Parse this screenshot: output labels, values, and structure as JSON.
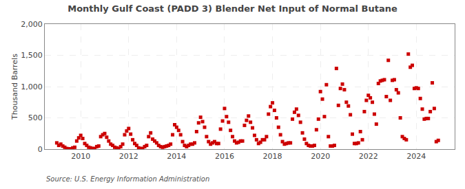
{
  "chart_data": {
    "type": "scatter",
    "title": "Monthly Gulf Coast (PADD 3) Blender Net Input of Normal Butane",
    "ylabel": "Thousand Barrels",
    "annotations": [
      "Source: U.S. Energy Information Administration"
    ],
    "color": "#cc0000",
    "marker": "square",
    "grid": true,
    "xlim": [
      2008.5,
      2025.6
    ],
    "xticks": [
      2010,
      2012,
      2014,
      2016,
      2018,
      2020,
      2022,
      2024
    ],
    "ylim": [
      0,
      2000
    ],
    "yticks": [
      0,
      500,
      {
        "value": 1000,
        "label": "1,000"
      },
      {
        "value": 1500,
        "label": "1,500"
      },
      {
        "value": 2000,
        "label": "2,000"
      }
    ],
    "x": [
      2009.0,
      2009.083,
      2009.167,
      2009.25,
      2009.333,
      2009.417,
      2009.5,
      2009.583,
      2009.667,
      2009.75,
      2009.833,
      2009.917,
      2010.0,
      2010.083,
      2010.167,
      2010.25,
      2010.333,
      2010.417,
      2010.5,
      2010.583,
      2010.667,
      2010.75,
      2010.833,
      2010.917,
      2011.0,
      2011.083,
      2011.167,
      2011.25,
      2011.333,
      2011.417,
      2011.5,
      2011.583,
      2011.667,
      2011.75,
      2011.833,
      2011.917,
      2012.0,
      2012.083,
      2012.167,
      2012.25,
      2012.333,
      2012.417,
      2012.5,
      2012.583,
      2012.667,
      2012.75,
      2012.833,
      2012.917,
      2013.0,
      2013.083,
      2013.167,
      2013.25,
      2013.333,
      2013.417,
      2013.5,
      2013.583,
      2013.667,
      2013.75,
      2013.833,
      2013.917,
      2014.0,
      2014.083,
      2014.167,
      2014.25,
      2014.333,
      2014.417,
      2014.5,
      2014.583,
      2014.667,
      2014.75,
      2014.833,
      2014.917,
      2015.0,
      2015.083,
      2015.167,
      2015.25,
      2015.333,
      2015.417,
      2015.5,
      2015.583,
      2015.667,
      2015.75,
      2015.833,
      2015.917,
      2016.0,
      2016.083,
      2016.167,
      2016.25,
      2016.333,
      2016.417,
      2016.5,
      2016.583,
      2016.667,
      2016.75,
      2016.833,
      2016.917,
      2017.0,
      2017.083,
      2017.167,
      2017.25,
      2017.333,
      2017.417,
      2017.5,
      2017.583,
      2017.667,
      2017.75,
      2017.833,
      2017.917,
      2018.0,
      2018.083,
      2018.167,
      2018.25,
      2018.333,
      2018.417,
      2018.5,
      2018.583,
      2018.667,
      2018.75,
      2018.833,
      2018.917,
      2019.0,
      2019.083,
      2019.167,
      2019.25,
      2019.333,
      2019.417,
      2019.5,
      2019.583,
      2019.667,
      2019.75,
      2019.833,
      2019.917,
      2020.0,
      2020.083,
      2020.167,
      2020.25,
      2020.333,
      2020.417,
      2020.5,
      2020.583,
      2020.667,
      2020.75,
      2020.833,
      2020.917,
      2021.0,
      2021.083,
      2021.167,
      2021.25,
      2021.333,
      2021.417,
      2021.5,
      2021.583,
      2021.667,
      2021.75,
      2021.833,
      2021.917,
      2022.0,
      2022.083,
      2022.167,
      2022.25,
      2022.333,
      2022.417,
      2022.5,
      2022.583,
      2022.667,
      2022.75,
      2022.833,
      2022.917,
      2023.0,
      2023.083,
      2023.167,
      2023.25,
      2023.333,
      2023.417,
      2023.5,
      2023.583,
      2023.667,
      2023.75,
      2023.833,
      2023.917,
      2024.0,
      2024.083,
      2024.167,
      2024.25,
      2024.333,
      2024.417,
      2024.5,
      2024.583,
      2024.667,
      2024.75,
      2024.833,
      2024.917
    ],
    "values": [
      100,
      60,
      80,
      50,
      30,
      10,
      5,
      5,
      20,
      30,
      130,
      180,
      220,
      170,
      90,
      60,
      30,
      20,
      10,
      10,
      40,
      50,
      200,
      230,
      250,
      190,
      130,
      80,
      60,
      30,
      20,
      10,
      40,
      80,
      230,
      290,
      330,
      240,
      150,
      90,
      60,
      20,
      10,
      10,
      40,
      60,
      200,
      260,
      160,
      130,
      100,
      60,
      40,
      30,
      40,
      50,
      60,
      80,
      230,
      390,
      350,
      300,
      230,
      120,
      60,
      40,
      60,
      80,
      80,
      100,
      280,
      420,
      510,
      440,
      350,
      200,
      120,
      80,
      100,
      120,
      90,
      90,
      320,
      450,
      650,
      520,
      430,
      300,
      200,
      130,
      100,
      110,
      130,
      130,
      380,
      460,
      530,
      430,
      340,
      220,
      150,
      90,
      110,
      150,
      150,
      200,
      560,
      680,
      740,
      620,
      500,
      350,
      230,
      120,
      80,
      90,
      100,
      100,
      480,
      590,
      640,
      540,
      430,
      260,
      160,
      90,
      60,
      50,
      50,
      60,
      310,
      480,
      920,
      800,
      520,
      1030,
      200,
      50,
      50,
      60,
      1290,
      700,
      970,
      1040,
      950,
      750,
      690,
      550,
      240,
      90,
      90,
      100,
      280,
      150,
      600,
      780,
      860,
      820,
      750,
      560,
      400,
      1050,
      1090,
      1100,
      1110,
      840,
      1420,
      780,
      1100,
      1110,
      950,
      900,
      500,
      200,
      170,
      150,
      1520,
      1310,
      1340,
      970,
      980,
      970,
      810,
      640,
      480,
      490,
      490,
      600,
      1060,
      650,
      120,
      140
    ]
  }
}
